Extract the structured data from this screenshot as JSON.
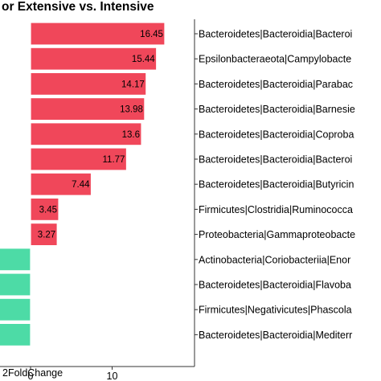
{
  "chart_data": {
    "type": "bar",
    "orientation": "horizontal",
    "title": "or Extensive vs. Intensive",
    "xlabel": "2FoldChange",
    "x_ticks": [
      "0",
      "10"
    ],
    "xlim": [
      -14,
      24
    ],
    "grid": false,
    "categories": [
      "Bacteroidetes|Bacteroidia|Bacteroi",
      "Epsilonbacteraeota|Campylobacte",
      "Bacteroidetes|Bacteroidia|Parabac",
      "Bacteroidetes|Bacteroidia|Barnesie",
      "Bacteroidetes|Bacteroidia|Coproba",
      "Bacteroidetes|Bacteroidia|Bacteroi",
      "Bacteroidetes|Bacteroidia|Butyricin",
      "Firmicutes|Clostridia|Ruminococca",
      "Proteobacteria|Gammaproteobacte",
      "Actinobacteria|Coriobacteriia|Enor",
      "Bacteroidetes|Bacteroidia|Flavoba",
      "Firmicutes|Negativicutes|Phascola",
      "Bacteroidetes|Bacteroidia|Mediterr"
    ],
    "values": [
      16.45,
      15.44,
      14.17,
      13.98,
      13.6,
      11.77,
      7.44,
      3.45,
      3.27,
      -12,
      -12,
      -12,
      -12
    ],
    "data_labels": [
      "16.45",
      "15.44",
      "14.17",
      "13.98",
      "13.6",
      "11.77",
      "7.44",
      "3.45",
      "3.27",
      "",
      "",
      "",
      ""
    ],
    "colors": {
      "positive": "#f0475a",
      "negative": "#4ddba6",
      "bar_outline": "#ffffff",
      "axis": "#333333",
      "panel": "#ffffff"
    }
  }
}
